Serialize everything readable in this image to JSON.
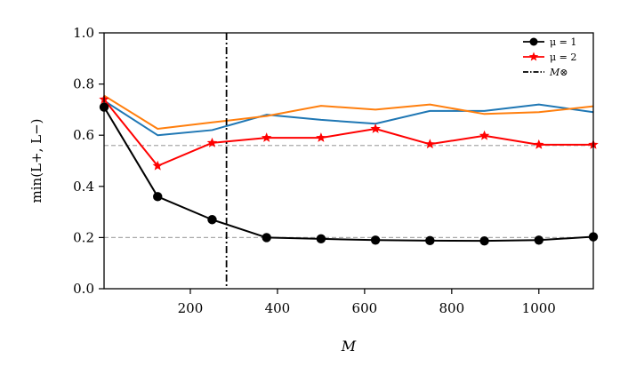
{
  "chart_data": {
    "type": "line",
    "xlabel": "M",
    "ylabel": "min(L+, L−)",
    "xlim": [
      2,
      1125
    ],
    "ylim": [
      0.0,
      1.0
    ],
    "x_ticks": [
      200,
      400,
      600,
      800,
      1000
    ],
    "y_ticks": [
      0.0,
      0.2,
      0.4,
      0.6,
      0.8,
      1.0
    ],
    "x_tick_labels": [
      "200",
      "400",
      "600",
      "800",
      "1000"
    ],
    "y_tick_labels": [
      "0.0",
      "0.2",
      "0.4",
      "0.6",
      "0.8",
      "1.0"
    ],
    "x": [
      2,
      125,
      250,
      375,
      500,
      625,
      750,
      875,
      1000,
      1125
    ],
    "series": [
      {
        "name": "μ = 1",
        "color": "#000000",
        "marker": "circle",
        "legend": true,
        "values": [
          0.71,
          0.36,
          0.27,
          0.2,
          0.195,
          0.19,
          0.188,
          0.187,
          0.19,
          0.203
        ]
      },
      {
        "name": "μ = 2",
        "color": "#ff0000",
        "marker": "star",
        "legend": true,
        "values": [
          0.74,
          0.48,
          0.57,
          0.59,
          0.59,
          0.625,
          0.565,
          0.598,
          0.563,
          0.563
        ]
      },
      {
        "name": "",
        "color": "#1f77b4",
        "marker": "none",
        "legend": false,
        "values": [
          0.735,
          0.6,
          0.62,
          0.68,
          0.66,
          0.645,
          0.695,
          0.695,
          0.72,
          0.69
        ]
      },
      {
        "name": "",
        "color": "#ff7f0e",
        "marker": "none",
        "legend": false,
        "values": [
          0.755,
          0.625,
          0.65,
          0.675,
          0.715,
          0.7,
          0.72,
          0.683,
          0.69,
          0.713
        ]
      }
    ],
    "vline": {
      "x": 283,
      "label": "M⊗",
      "color": "#000000",
      "style": "dashdot"
    },
    "hlines": [
      {
        "y": 0.2,
        "color": "#aaaaaa",
        "style": "dashed"
      },
      {
        "y": 0.56,
        "color": "#aaaaaa",
        "style": "dashed"
      }
    ],
    "legend_position": "top-right",
    "grid": false
  }
}
